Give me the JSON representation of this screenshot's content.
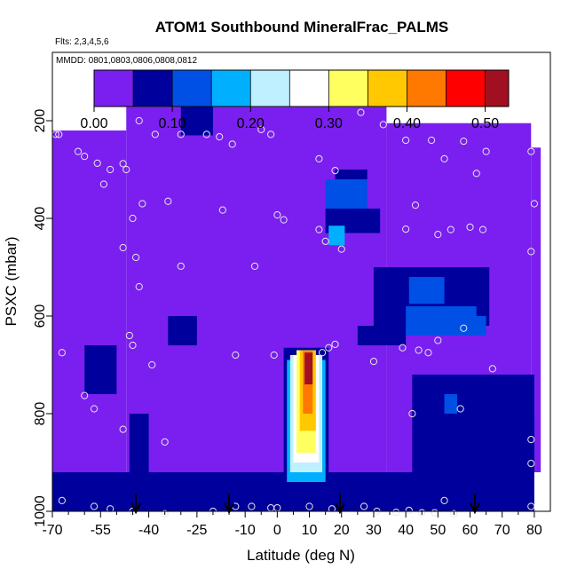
{
  "chart_data": {
    "type": "heatmap",
    "title": "ATOM1 Southbound MineralFrac_PALMS",
    "flights_note": "Flts: 2,3,4,5,6",
    "dates_note": "MMDD: 0801,0803,0806,0808,0812",
    "xlabel": "Latitude (deg N)",
    "ylabel": "PSXC (mbar)",
    "xlim": [
      -70,
      85
    ],
    "ylim": [
      1000,
      60
    ],
    "x_ticks": [
      -70,
      -55,
      -40,
      -25,
      -10,
      0,
      10,
      20,
      30,
      40,
      50,
      60,
      70,
      80
    ],
    "x_tick_labels": [
      "-70",
      "-55",
      "-40",
      "-25",
      "-10",
      "0",
      "10",
      "20",
      "30",
      "40",
      "50",
      "60",
      "70",
      "80"
    ],
    "x_minor_ticks": [
      -65,
      -60,
      -50,
      -45,
      -35,
      -30,
      -20,
      -15,
      -5,
      5,
      15,
      25,
      35,
      45,
      55,
      65,
      75
    ],
    "y_ticks": [
      200,
      400,
      600,
      800,
      1000
    ],
    "y_tick_labels": [
      "200",
      "400",
      "600",
      "800",
      "1000"
    ],
    "colorbar": {
      "range": [
        0,
        0.53
      ],
      "ticks": [
        0.0,
        0.1,
        0.2,
        0.3,
        0.4,
        0.5
      ],
      "tick_labels": [
        "0.00",
        "0.10",
        "0.20",
        "0.30",
        "0.40",
        "0.50"
      ],
      "bin_edges": [
        0.05,
        0.1,
        0.15,
        0.2,
        0.25,
        0.3,
        0.35,
        0.4,
        0.45,
        0.5
      ],
      "colors": [
        "#7a1fef",
        "#00009c",
        "#0050e6",
        "#00b0ff",
        "#bff0ff",
        "#ffffff",
        "#ffff60",
        "#ffc800",
        "#ff7800",
        "#ff0000",
        "#a01020"
      ]
    },
    "background_value": 0.03,
    "domain_regions": [
      {
        "lat": [
          -70,
          -47
        ],
        "p": [
          220,
          1000
        ]
      },
      {
        "lat": [
          -47,
          34
        ],
        "p": [
          172,
          1000
        ]
      },
      {
        "lat": [
          34,
          79
        ],
        "p": [
          205,
          1000
        ]
      },
      {
        "lat": [
          79,
          82
        ],
        "p": [
          255,
          850
        ]
      },
      {
        "lat": [
          56,
          79
        ],
        "p": [
          850,
          940
        ]
      },
      {
        "lat": [
          79,
          82
        ],
        "p": [
          850,
          920
        ]
      }
    ],
    "value_regions": [
      {
        "lat": [
          -70,
          80
        ],
        "p": [
          920,
          1000
        ],
        "value": 0.05
      },
      {
        "lat": [
          -30,
          -20
        ],
        "p": [
          172,
          230
        ],
        "value": 0.05
      },
      {
        "lat": [
          -46,
          -40
        ],
        "p": [
          800,
          1000
        ],
        "value": 0.05
      },
      {
        "lat": [
          -34,
          -25
        ],
        "p": [
          600,
          660
        ],
        "value": 0.05
      },
      {
        "lat": [
          -60,
          -50
        ],
        "p": [
          660,
          760
        ],
        "value": 0.05
      },
      {
        "lat": [
          30,
          66
        ],
        "p": [
          500,
          620
        ],
        "value": 0.07
      },
      {
        "lat": [
          40,
          62
        ],
        "p": [
          580,
          640
        ],
        "value": 0.1
      },
      {
        "lat": [
          41,
          52
        ],
        "p": [
          520,
          575
        ],
        "value": 0.11
      },
      {
        "lat": [
          55,
          65
        ],
        "p": [
          600,
          640
        ],
        "value": 0.13
      },
      {
        "lat": [
          15,
          28
        ],
        "p": [
          320,
          380
        ],
        "value": 0.1
      },
      {
        "lat": [
          15,
          32
        ],
        "p": [
          380,
          430
        ],
        "value": 0.08
      },
      {
        "lat": [
          18,
          28
        ],
        "p": [
          300,
          320
        ],
        "value": 0.06
      },
      {
        "lat": [
          16,
          21
        ],
        "p": [
          415,
          455
        ],
        "value": 0.16
      },
      {
        "lat": [
          25,
          40
        ],
        "p": [
          620,
          660
        ],
        "value": 0.05
      },
      {
        "lat": [
          42,
          80
        ],
        "p": [
          720,
          920
        ],
        "value": 0.05
      },
      {
        "lat": [
          50,
          80
        ],
        "p": [
          800,
          900
        ],
        "value": 0.08
      },
      {
        "lat": [
          52,
          56
        ],
        "p": [
          760,
          800
        ],
        "value": 0.1
      },
      {
        "lat": [
          6,
          16
        ],
        "p": [
          955,
          1000
        ],
        "value": 0.08
      },
      {
        "lat": [
          2,
          16
        ],
        "p": [
          665,
          700
        ],
        "value": 0.06
      },
      {
        "lat": [
          2,
          16
        ],
        "p": [
          700,
          960
        ],
        "value": 0.08
      },
      {
        "lat": [
          3,
          15
        ],
        "p": [
          690,
          940
        ],
        "value": 0.15
      },
      {
        "lat": [
          4,
          14
        ],
        "p": [
          680,
          920
        ],
        "value": 0.2
      },
      {
        "lat": [
          5,
          13
        ],
        "p": [
          680,
          900
        ],
        "value": 0.25
      },
      {
        "lat": [
          6,
          12
        ],
        "p": [
          670,
          880
        ],
        "value": 0.3
      },
      {
        "lat": [
          7,
          12
        ],
        "p": [
          670,
          835
        ],
        "value": 0.35
      },
      {
        "lat": [
          8,
          11
        ],
        "p": [
          672,
          800
        ],
        "value": 0.4
      },
      {
        "lat": [
          8,
          11
        ],
        "p": [
          672,
          760
        ],
        "value": 0.44
      },
      {
        "lat": [
          8.5,
          11
        ],
        "p": [
          675,
          740
        ],
        "value": 0.5
      }
    ],
    "observation_points": [
      [
        -69,
        228
      ],
      [
        -68,
        228
      ],
      [
        -62,
        263
      ],
      [
        -60,
        273
      ],
      [
        -56,
        287
      ],
      [
        -54,
        330
      ],
      [
        -52,
        300
      ],
      [
        -48,
        288
      ],
      [
        -47,
        300
      ],
      [
        -43,
        200
      ],
      [
        -38,
        228
      ],
      [
        -30,
        228
      ],
      [
        -22,
        228
      ],
      [
        -18,
        233
      ],
      [
        -14,
        248
      ],
      [
        -5,
        218
      ],
      [
        -2,
        228
      ],
      [
        -48,
        460
      ],
      [
        -45,
        400
      ],
      [
        -42,
        370
      ],
      [
        -34,
        365
      ],
      [
        -17,
        383
      ],
      [
        0,
        393
      ],
      [
        2,
        403
      ],
      [
        -44,
        480
      ],
      [
        -43,
        540
      ],
      [
        -30,
        498
      ],
      [
        -7,
        498
      ],
      [
        13,
        278
      ],
      [
        18,
        302
      ],
      [
        26,
        183
      ],
      [
        33,
        208
      ],
      [
        40,
        240
      ],
      [
        48,
        240
      ],
      [
        52,
        278
      ],
      [
        58,
        242
      ],
      [
        62,
        308
      ],
      [
        65,
        263
      ],
      [
        79,
        263
      ],
      [
        43,
        373
      ],
      [
        40,
        422
      ],
      [
        50,
        433
      ],
      [
        54,
        423
      ],
      [
        60,
        418
      ],
      [
        64,
        423
      ],
      [
        13,
        423
      ],
      [
        15,
        447
      ],
      [
        20,
        463
      ],
      [
        79,
        468
      ],
      [
        80,
        370
      ],
      [
        -46,
        640
      ],
      [
        -45,
        660
      ],
      [
        -39,
        700
      ],
      [
        -13,
        680
      ],
      [
        -1,
        680
      ],
      [
        14,
        675
      ],
      [
        16,
        665
      ],
      [
        18,
        658
      ],
      [
        30,
        693
      ],
      [
        39,
        665
      ],
      [
        44,
        670
      ],
      [
        47,
        675
      ],
      [
        50,
        650
      ],
      [
        58,
        625
      ],
      [
        67,
        708
      ],
      [
        -67,
        675
      ],
      [
        -60,
        763
      ],
      [
        -57,
        790
      ],
      [
        -48,
        832
      ],
      [
        -35,
        858
      ],
      [
        42,
        800
      ],
      [
        57,
        790
      ],
      [
        79,
        853
      ],
      [
        79,
        902
      ],
      [
        -67,
        978
      ],
      [
        -57,
        990
      ],
      [
        -52,
        995
      ],
      [
        -45,
        1000
      ],
      [
        -35,
        1005
      ],
      [
        -20,
        1000
      ],
      [
        -13,
        990
      ],
      [
        -8,
        990
      ],
      [
        -2,
        993
      ],
      [
        0,
        993
      ],
      [
        10,
        990
      ],
      [
        17,
        995
      ],
      [
        27,
        990
      ],
      [
        31,
        1000
      ],
      [
        37,
        1002
      ],
      [
        41,
        998
      ],
      [
        45,
        1003
      ],
      [
        49,
        1003
      ],
      [
        52,
        978
      ],
      [
        55,
        1005
      ],
      [
        79,
        990
      ]
    ],
    "flight_markers_lat": [
      -44,
      -15,
      19.5,
      61.5
    ]
  }
}
